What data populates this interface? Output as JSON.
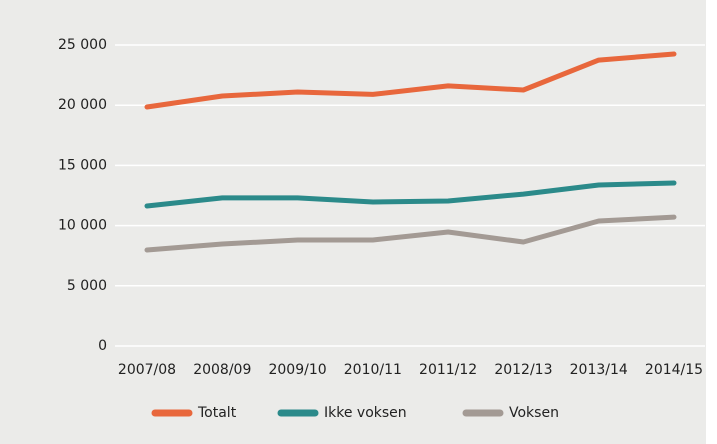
{
  "chart_data": {
    "type": "line",
    "categories": [
      "2007/08",
      "2008/09",
      "2009/10",
      "2010/11",
      "2011/12",
      "2012/13",
      "2013/14",
      "2014/15"
    ],
    "series": [
      {
        "name": "Totalt",
        "color": "#e8673c",
        "values": [
          19850,
          20760,
          21100,
          20900,
          21600,
          21260,
          23750,
          24250
        ]
      },
      {
        "name": "Ikke voksen",
        "color": "#2b8a8a",
        "values": [
          11630,
          12300,
          12300,
          11960,
          12040,
          12620,
          13370,
          13540
        ]
      },
      {
        "name": "Voksen",
        "color": "#a39a94",
        "values": [
          7970,
          8470,
          8800,
          8800,
          9470,
          8640,
          10380,
          10710
        ]
      }
    ],
    "ylim": [
      0,
      25000
    ],
    "yticks": [
      0,
      {
        "value": 5000,
        "label": "5 000"
      },
      {
        "value": 10000,
        "label": "10 000"
      },
      {
        "value": 15000,
        "label": "15 000"
      },
      {
        "value": 20000,
        "label": "20 000"
      },
      {
        "value": 25000,
        "label": "25 000"
      }
    ],
    "grid": true,
    "legend": "bottom"
  }
}
